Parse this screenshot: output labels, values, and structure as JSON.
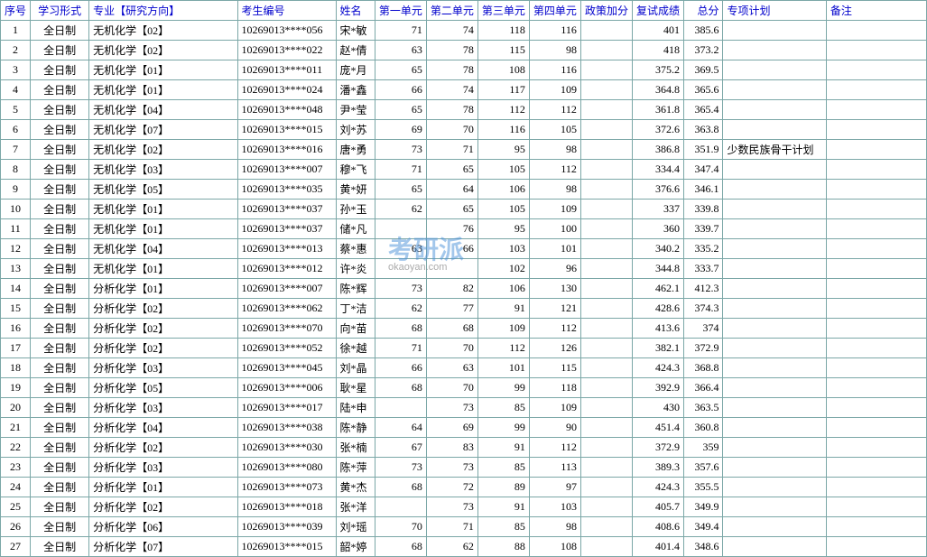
{
  "headers": {
    "seq": "序号",
    "form": "学习形式",
    "major": "专业【研究方向】",
    "id": "考生编号",
    "name": "姓名",
    "u1": "第一单元",
    "u2": "第二单元",
    "u3": "第三单元",
    "u4": "第四单元",
    "bonus": "政策加分",
    "retest": "复试成绩",
    "total": "总分",
    "plan": "专项计划",
    "note": "备注"
  },
  "watermark": {
    "main": "考研派",
    "sub": "okaoyan.com"
  },
  "rows": [
    {
      "seq": "1",
      "form": "全日制",
      "major": "无机化学【02】",
      "id": "10269013****056",
      "name": "宋*敏",
      "u1": "71",
      "u2": "74",
      "u3": "118",
      "u4": "116",
      "bonus": "",
      "retest": "401",
      "total": "385.6",
      "plan": "",
      "note": ""
    },
    {
      "seq": "2",
      "form": "全日制",
      "major": "无机化学【02】",
      "id": "10269013****022",
      "name": "赵*倩",
      "u1": "63",
      "u2": "78",
      "u3": "115",
      "u4": "98",
      "bonus": "",
      "retest": "418",
      "total": "373.2",
      "plan": "",
      "note": ""
    },
    {
      "seq": "3",
      "form": "全日制",
      "major": "无机化学【01】",
      "id": "10269013****011",
      "name": "庞*月",
      "u1": "65",
      "u2": "78",
      "u3": "108",
      "u4": "116",
      "bonus": "",
      "retest": "375.2",
      "total": "369.5",
      "plan": "",
      "note": ""
    },
    {
      "seq": "4",
      "form": "全日制",
      "major": "无机化学【01】",
      "id": "10269013****024",
      "name": "潘*鑫",
      "u1": "66",
      "u2": "74",
      "u3": "117",
      "u4": "109",
      "bonus": "",
      "retest": "364.8",
      "total": "365.6",
      "plan": "",
      "note": ""
    },
    {
      "seq": "5",
      "form": "全日制",
      "major": "无机化学【04】",
      "id": "10269013****048",
      "name": "尹*莹",
      "u1": "65",
      "u2": "78",
      "u3": "112",
      "u4": "112",
      "bonus": "",
      "retest": "361.8",
      "total": "365.4",
      "plan": "",
      "note": ""
    },
    {
      "seq": "6",
      "form": "全日制",
      "major": "无机化学【07】",
      "id": "10269013****015",
      "name": "刘*苏",
      "u1": "69",
      "u2": "70",
      "u3": "116",
      "u4": "105",
      "bonus": "",
      "retest": "372.6",
      "total": "363.8",
      "plan": "",
      "note": ""
    },
    {
      "seq": "7",
      "form": "全日制",
      "major": "无机化学【02】",
      "id": "10269013****016",
      "name": "唐*勇",
      "u1": "73",
      "u2": "71",
      "u3": "95",
      "u4": "98",
      "bonus": "",
      "retest": "386.8",
      "total": "351.9",
      "plan": "少数民族骨干计划",
      "note": ""
    },
    {
      "seq": "8",
      "form": "全日制",
      "major": "无机化学【03】",
      "id": "10269013****007",
      "name": "穆*飞",
      "u1": "71",
      "u2": "65",
      "u3": "105",
      "u4": "112",
      "bonus": "",
      "retest": "334.4",
      "total": "347.4",
      "plan": "",
      "note": ""
    },
    {
      "seq": "9",
      "form": "全日制",
      "major": "无机化学【05】",
      "id": "10269013****035",
      "name": "黄*妍",
      "u1": "65",
      "u2": "64",
      "u3": "106",
      "u4": "98",
      "bonus": "",
      "retest": "376.6",
      "total": "346.1",
      "plan": "",
      "note": ""
    },
    {
      "seq": "10",
      "form": "全日制",
      "major": "无机化学【01】",
      "id": "10269013****037",
      "name": "孙*玉",
      "u1": "62",
      "u2": "65",
      "u3": "105",
      "u4": "109",
      "bonus": "",
      "retest": "337",
      "total": "339.8",
      "plan": "",
      "note": ""
    },
    {
      "seq": "11",
      "form": "全日制",
      "major": "无机化学【01】",
      "id": "10269013****037",
      "name": "储*凡",
      "u1": "",
      "u2": "76",
      "u3": "95",
      "u4": "100",
      "bonus": "",
      "retest": "360",
      "total": "339.7",
      "plan": "",
      "note": ""
    },
    {
      "seq": "12",
      "form": "全日制",
      "major": "无机化学【04】",
      "id": "10269013****013",
      "name": "蔡*惠",
      "u1": "63",
      "u2": "66",
      "u3": "103",
      "u4": "101",
      "bonus": "",
      "retest": "340.2",
      "total": "335.2",
      "plan": "",
      "note": ""
    },
    {
      "seq": "13",
      "form": "全日制",
      "major": "无机化学【01】",
      "id": "10269013****012",
      "name": "许*炎",
      "u1": "",
      "u2": "",
      "u3": "102",
      "u4": "96",
      "bonus": "",
      "retest": "344.8",
      "total": "333.7",
      "plan": "",
      "note": ""
    },
    {
      "seq": "14",
      "form": "全日制",
      "major": "分析化学【01】",
      "id": "10269013****007",
      "name": "陈*辉",
      "u1": "73",
      "u2": "82",
      "u3": "106",
      "u4": "130",
      "bonus": "",
      "retest": "462.1",
      "total": "412.3",
      "plan": "",
      "note": ""
    },
    {
      "seq": "15",
      "form": "全日制",
      "major": "分析化学【02】",
      "id": "10269013****062",
      "name": "丁*洁",
      "u1": "62",
      "u2": "77",
      "u3": "91",
      "u4": "121",
      "bonus": "",
      "retest": "428.6",
      "total": "374.3",
      "plan": "",
      "note": ""
    },
    {
      "seq": "16",
      "form": "全日制",
      "major": "分析化学【02】",
      "id": "10269013****070",
      "name": "向*苗",
      "u1": "68",
      "u2": "68",
      "u3": "109",
      "u4": "112",
      "bonus": "",
      "retest": "413.6",
      "total": "374",
      "plan": "",
      "note": ""
    },
    {
      "seq": "17",
      "form": "全日制",
      "major": "分析化学【02】",
      "id": "10269013****052",
      "name": "徐*越",
      "u1": "71",
      "u2": "70",
      "u3": "112",
      "u4": "126",
      "bonus": "",
      "retest": "382.1",
      "total": "372.9",
      "plan": "",
      "note": ""
    },
    {
      "seq": "18",
      "form": "全日制",
      "major": "分析化学【03】",
      "id": "10269013****045",
      "name": "刘*晶",
      "u1": "66",
      "u2": "63",
      "u3": "101",
      "u4": "115",
      "bonus": "",
      "retest": "424.3",
      "total": "368.8",
      "plan": "",
      "note": ""
    },
    {
      "seq": "19",
      "form": "全日制",
      "major": "分析化学【05】",
      "id": "10269013****006",
      "name": "耿*星",
      "u1": "68",
      "u2": "70",
      "u3": "99",
      "u4": "118",
      "bonus": "",
      "retest": "392.9",
      "total": "366.4",
      "plan": "",
      "note": ""
    },
    {
      "seq": "20",
      "form": "全日制",
      "major": "分析化学【03】",
      "id": "10269013****017",
      "name": "陆*申",
      "u1": "",
      "u2": "73",
      "u3": "85",
      "u4": "109",
      "bonus": "",
      "retest": "430",
      "total": "363.5",
      "plan": "",
      "note": ""
    },
    {
      "seq": "21",
      "form": "全日制",
      "major": "分析化学【04】",
      "id": "10269013****038",
      "name": "陈*静",
      "u1": "64",
      "u2": "69",
      "u3": "99",
      "u4": "90",
      "bonus": "",
      "retest": "451.4",
      "total": "360.8",
      "plan": "",
      "note": ""
    },
    {
      "seq": "22",
      "form": "全日制",
      "major": "分析化学【02】",
      "id": "10269013****030",
      "name": "张*楠",
      "u1": "67",
      "u2": "83",
      "u3": "91",
      "u4": "112",
      "bonus": "",
      "retest": "372.9",
      "total": "359",
      "plan": "",
      "note": ""
    },
    {
      "seq": "23",
      "form": "全日制",
      "major": "分析化学【03】",
      "id": "10269013****080",
      "name": "陈*萍",
      "u1": "73",
      "u2": "73",
      "u3": "85",
      "u4": "113",
      "bonus": "",
      "retest": "389.3",
      "total": "357.6",
      "plan": "",
      "note": ""
    },
    {
      "seq": "24",
      "form": "全日制",
      "major": "分析化学【01】",
      "id": "10269013****073",
      "name": "黄*杰",
      "u1": "68",
      "u2": "72",
      "u3": "89",
      "u4": "97",
      "bonus": "",
      "retest": "424.3",
      "total": "355.5",
      "plan": "",
      "note": ""
    },
    {
      "seq": "25",
      "form": "全日制",
      "major": "分析化学【02】",
      "id": "10269013****018",
      "name": "张*洋",
      "u1": "",
      "u2": "73",
      "u3": "91",
      "u4": "103",
      "bonus": "",
      "retest": "405.7",
      "total": "349.9",
      "plan": "",
      "note": ""
    },
    {
      "seq": "26",
      "form": "全日制",
      "major": "分析化学【06】",
      "id": "10269013****039",
      "name": "刘*瑶",
      "u1": "70",
      "u2": "71",
      "u3": "85",
      "u4": "98",
      "bonus": "",
      "retest": "408.6",
      "total": "349.4",
      "plan": "",
      "note": ""
    },
    {
      "seq": "27",
      "form": "全日制",
      "major": "分析化学【07】",
      "id": "10269013****015",
      "name": "韶*婷",
      "u1": "68",
      "u2": "62",
      "u3": "88",
      "u4": "108",
      "bonus": "",
      "retest": "401.4",
      "total": "348.6",
      "plan": "",
      "note": ""
    }
  ],
  "colors": {
    "border": "#7ba7a7",
    "header_text": "#0000cc",
    "body_text": "#000000",
    "background": "#ffffff"
  }
}
